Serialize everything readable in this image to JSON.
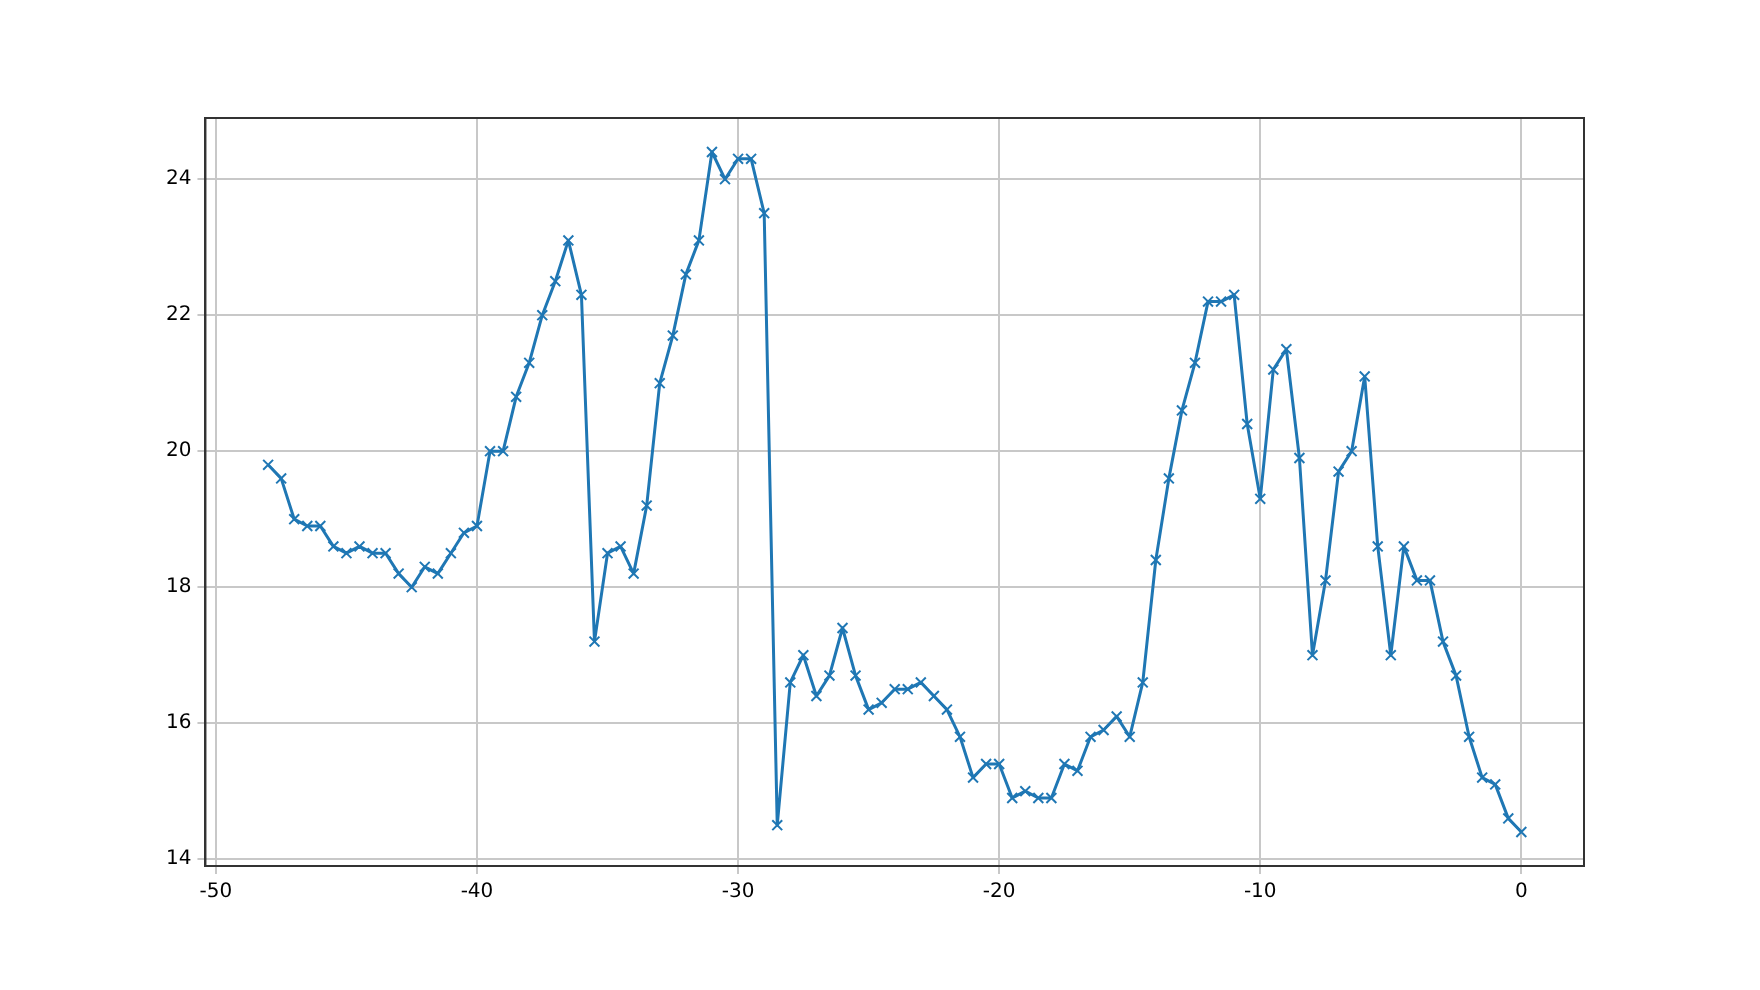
{
  "chart_data": {
    "type": "line",
    "x": [
      -48,
      -47.5,
      -47,
      -46.5,
      -46,
      -45.5,
      -45,
      -44.5,
      -44,
      -43.5,
      -43,
      -42.5,
      -42,
      -41.5,
      -41,
      -40.5,
      -40,
      -39.5,
      -39,
      -38.5,
      -38,
      -37.5,
      -37,
      -36.5,
      -36,
      -35.5,
      -35,
      -34.5,
      -34,
      -33.5,
      -33,
      -32.5,
      -32,
      -31.5,
      -31,
      -30.5,
      -30,
      -29.5,
      -29,
      -28.5,
      -28,
      -27.5,
      -27,
      -26.5,
      -26,
      -25.5,
      -25,
      -24.5,
      -24,
      -23.5,
      -23,
      -22.5,
      -22,
      -21.5,
      -21,
      -20.5,
      -20,
      -19.5,
      -19,
      -18.5,
      -18,
      -17.5,
      -17,
      -16.5,
      -16,
      -15.5,
      -15,
      -14.5,
      -14,
      -13.5,
      -13,
      -12.5,
      -12,
      -11.5,
      -11,
      -10.5,
      -10,
      -9.5,
      -9,
      -8.5,
      -8,
      -7.5,
      -7,
      -6.5,
      -6,
      -5.5,
      -5,
      -4.5,
      -4,
      -3.5,
      -3,
      -2.5,
      -2,
      -1.5,
      -1,
      -0.5,
      0
    ],
    "series": [
      {
        "color": "#1f77b4",
        "values": [
          19.8,
          19.6,
          19.0,
          18.9,
          18.9,
          18.6,
          18.5,
          18.6,
          18.5,
          18.5,
          18.2,
          18.0,
          18.3,
          18.2,
          18.5,
          18.8,
          18.9,
          20.0,
          20.0,
          20.8,
          21.3,
          22.0,
          22.5,
          23.1,
          22.3,
          17.2,
          18.5,
          18.6,
          18.2,
          19.2,
          21.0,
          21.7,
          22.6,
          23.1,
          24.4,
          24.0,
          24.3,
          24.3,
          23.5,
          14.5,
          16.6,
          17.0,
          16.4,
          16.7,
          17.4,
          16.7,
          16.2,
          16.3,
          16.5,
          16.5,
          16.6,
          16.4,
          16.2,
          15.8,
          15.2,
          15.4,
          15.4,
          14.9,
          15.0,
          14.9,
          14.9,
          15.4,
          15.3,
          15.8,
          15.9,
          16.1,
          15.8,
          16.6,
          18.4,
          19.6,
          20.6,
          21.3,
          22.2,
          22.2,
          22.3,
          20.4,
          19.3,
          21.2,
          21.5,
          19.9,
          17.0,
          18.1,
          19.7,
          20.0,
          21.1,
          18.6,
          17.0,
          18.6,
          18.1,
          18.1,
          17.2,
          16.7,
          15.8,
          15.2,
          15.1,
          14.6,
          14.4
        ]
      }
    ],
    "xlim": [
      -50.4,
      2.4
    ],
    "xticks": [
      -50,
      -40,
      -30,
      -20,
      -10,
      0
    ],
    "ylim": [
      13.9,
      24.9
    ],
    "yticks": [
      14,
      16,
      18,
      20,
      22,
      24
    ],
    "grid": true,
    "marker": "cross",
    "line_style": "solid"
  }
}
